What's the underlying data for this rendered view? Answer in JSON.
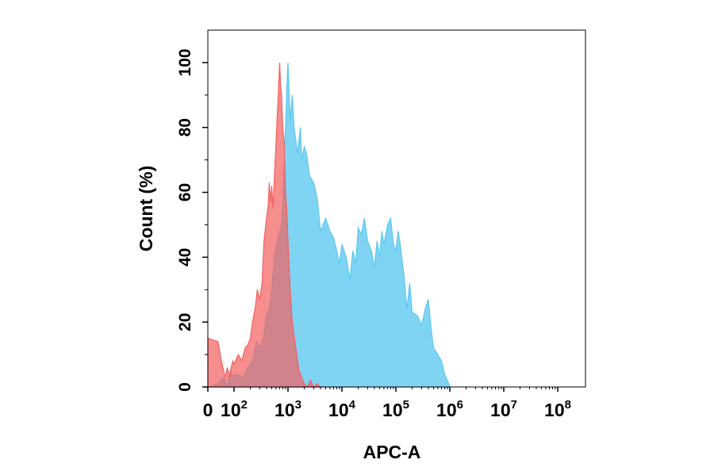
{
  "chart_data": {
    "type": "area",
    "xlabel": "APC-A",
    "ylabel": "Count (%)",
    "x_scale": "biexponential",
    "ylim": [
      0,
      110
    ],
    "y_ticks": [
      0,
      20,
      40,
      60,
      80,
      100
    ],
    "x_tick_labels": [
      {
        "value": 0,
        "base": "0",
        "exp": ""
      },
      {
        "value": 100,
        "base": "10",
        "exp": "2"
      },
      {
        "value": 1000,
        "base": "10",
        "exp": "3"
      },
      {
        "value": 10000,
        "base": "10",
        "exp": "4"
      },
      {
        "value": 100000,
        "base": "10",
        "exp": "5"
      },
      {
        "value": 1000000,
        "base": "10",
        "exp": "6"
      },
      {
        "value": 10000000,
        "base": "10",
        "exp": "7"
      },
      {
        "value": 100000000,
        "base": "10",
        "exp": "8"
      }
    ],
    "grid": false,
    "legend": "none",
    "series": [
      {
        "color": "#5bc8f0",
        "fill_opacity": 0.78,
        "x": [
          0,
          5,
          15,
          30,
          50,
          80,
          100,
          150,
          180,
          220,
          260,
          300,
          350,
          400,
          450,
          500,
          560,
          630,
          700,
          760,
          800,
          850,
          900,
          950,
          1000,
          1100,
          1200,
          1300,
          1500,
          1700,
          1800,
          2000,
          2200,
          2500,
          3000,
          3500,
          4000,
          5000,
          6000,
          7000,
          8000,
          9000,
          10000,
          12000,
          14000,
          16000,
          18000,
          20000,
          23000,
          26000,
          30000,
          35000,
          40000,
          45000,
          50000,
          55000,
          60000,
          70000,
          80000,
          90000,
          100000,
          110000,
          120000,
          140000,
          160000,
          180000,
          200000,
          250000,
          300000,
          350000,
          400000,
          450000,
          500000,
          600000,
          700000,
          800000,
          900000,
          1000000,
          1100000
        ],
        "y": [
          0,
          1,
          3,
          0,
          5,
          3,
          4,
          3,
          6,
          8,
          14,
          12,
          15,
          22,
          24,
          30,
          40,
          45,
          48,
          50,
          56,
          70,
          80,
          92,
          100,
          82,
          90,
          80,
          72,
          80,
          70,
          74,
          72,
          65,
          63,
          58,
          48,
          52,
          48,
          46,
          42,
          38,
          44,
          40,
          33,
          42,
          38,
          49,
          47,
          52,
          45,
          42,
          37,
          45,
          40,
          48,
          44,
          50,
          52,
          44,
          42,
          48,
          44,
          35,
          24,
          32,
          23,
          22,
          19,
          24,
          27,
          18,
          12,
          10,
          8,
          4,
          2,
          0,
          0
        ]
      },
      {
        "color": "#f26262",
        "fill_opacity": 0.72,
        "x": [
          0,
          5,
          10,
          20,
          30,
          40,
          50,
          60,
          80,
          100,
          120,
          140,
          160,
          180,
          200,
          220,
          250,
          270,
          300,
          330,
          360,
          400,
          430,
          450,
          480,
          500,
          530,
          560,
          600,
          650,
          700,
          730,
          760,
          800,
          850,
          900,
          950,
          1000,
          1100,
          1200,
          1400,
          1600,
          1800,
          2000,
          2300,
          2600,
          3000,
          3500,
          4000,
          5000
        ],
        "y": [
          15,
          14,
          8,
          3,
          6,
          4,
          3,
          6,
          8,
          7,
          10,
          8,
          12,
          13,
          15,
          20,
          25,
          30,
          27,
          32,
          45,
          52,
          56,
          63,
          57,
          62,
          55,
          65,
          75,
          88,
          100,
          93,
          90,
          80,
          75,
          60,
          55,
          45,
          30,
          20,
          12,
          5,
          3,
          1,
          0,
          2,
          0,
          1,
          0,
          0
        ]
      }
    ]
  }
}
